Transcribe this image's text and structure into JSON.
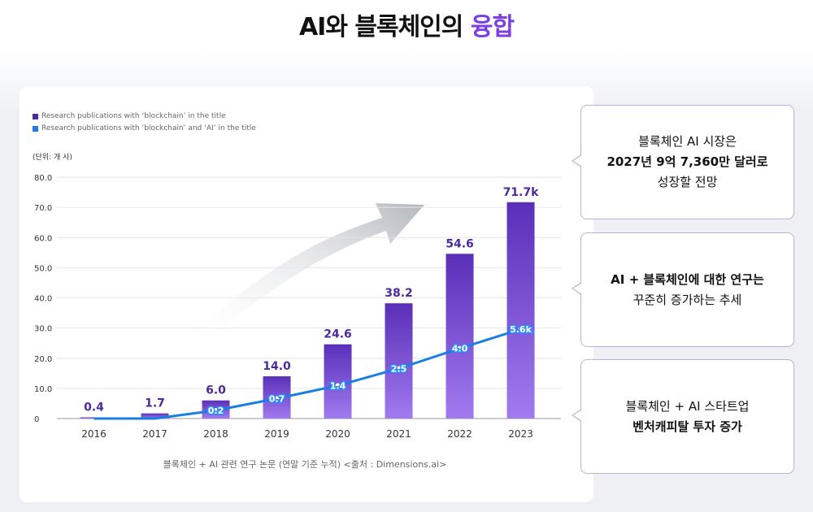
{
  "title": {
    "main": "AI와 블록체인의",
    "highlight": "융합"
  },
  "callouts": [
    {
      "line1": "블록체인 AI 시장은",
      "line2": "2027년 9억 7,360만 달러로",
      "line3": "성장할 전망"
    },
    {
      "line1": "AI + 블록체인에 대한 연구는",
      "line2": "꾸준히 증가하는 추세"
    },
    {
      "line1": "블록체인 + AI 스타트업",
      "line2": "벤처캐피탈 투자 증가"
    }
  ],
  "chart_data": {
    "type": "bar",
    "categories": [
      "2016",
      "2017",
      "2018",
      "2019",
      "2020",
      "2021",
      "2022",
      "2023"
    ],
    "series": [
      {
        "name": "Research publications with ‘blockchain’ in the title",
        "type": "bar",
        "color": "#5a2fb8",
        "values": [
          0.4,
          1.7,
          6.0,
          14.0,
          24.6,
          38.2,
          54.6,
          71.7
        ],
        "labels": [
          "0.4",
          "1.7",
          "6.0",
          "14.0",
          "24.6",
          "38.2",
          "54.6",
          "71.7k"
        ]
      },
      {
        "name": "Research publications with ‘blockchain’ and ‘AI’ in the title",
        "type": "line",
        "color": "#1a7fe0",
        "values": [
          0,
          0,
          0.2,
          0.7,
          1.4,
          2.5,
          4.0,
          5.6
        ],
        "labels": [
          "",
          "",
          "0.2",
          "0.7",
          "1.4",
          "2.5",
          "4.0",
          "5.6k"
        ]
      }
    ],
    "unit": "(단위: 개 사)",
    "yticks": [
      "0",
      "10.0",
      "20.0",
      "30.0",
      "40.0",
      "50.0",
      "60.0",
      "70.0",
      "80.0"
    ],
    "ylim": [
      0,
      80
    ],
    "source": "블록체인 + AI 관련 연구 논문 (연말 기준 누적) <출처 : Dimensions.ai>"
  }
}
